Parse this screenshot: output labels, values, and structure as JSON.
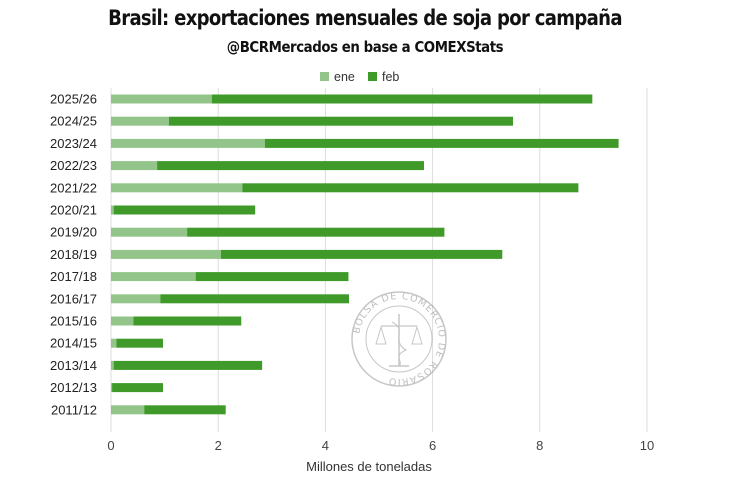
{
  "chart_data": {
    "type": "bar",
    "orientation": "horizontal",
    "stacked": true,
    "title": "Brasil: exportaciones mensuales de soja por campaña",
    "subtitle": "@BCRMercados en base a COMEXStats",
    "xlabel": "Millones de toneladas",
    "ylabel": "",
    "xlim": [
      0,
      10
    ],
    "xticks": [
      0,
      2,
      4,
      6,
      8,
      10
    ],
    "grid": true,
    "legend_position": "top",
    "categories": [
      "2025/26",
      "2024/25",
      "2023/24",
      "2022/23",
      "2021/22",
      "2020/21",
      "2019/20",
      "2018/19",
      "2017/18",
      "2016/17",
      "2015/16",
      "2014/15",
      "2013/14",
      "2012/13",
      "2011/12"
    ],
    "series": [
      {
        "name": "ene",
        "color": "#93c58a",
        "values": [
          1.88,
          1.08,
          2.87,
          0.86,
          2.45,
          0.05,
          1.42,
          2.05,
          1.58,
          0.92,
          0.42,
          0.1,
          0.05,
          0.02,
          0.62
        ]
      },
      {
        "name": "feb",
        "color": "#3f9a2a",
        "values": [
          7.1,
          6.42,
          6.6,
          4.98,
          6.27,
          2.64,
          4.8,
          5.25,
          2.85,
          3.52,
          2.01,
          0.87,
          2.77,
          0.95,
          1.52
        ]
      }
    ]
  },
  "watermark": {
    "text": "BOLSA DE COMERCIO DE ROSARIO"
  }
}
